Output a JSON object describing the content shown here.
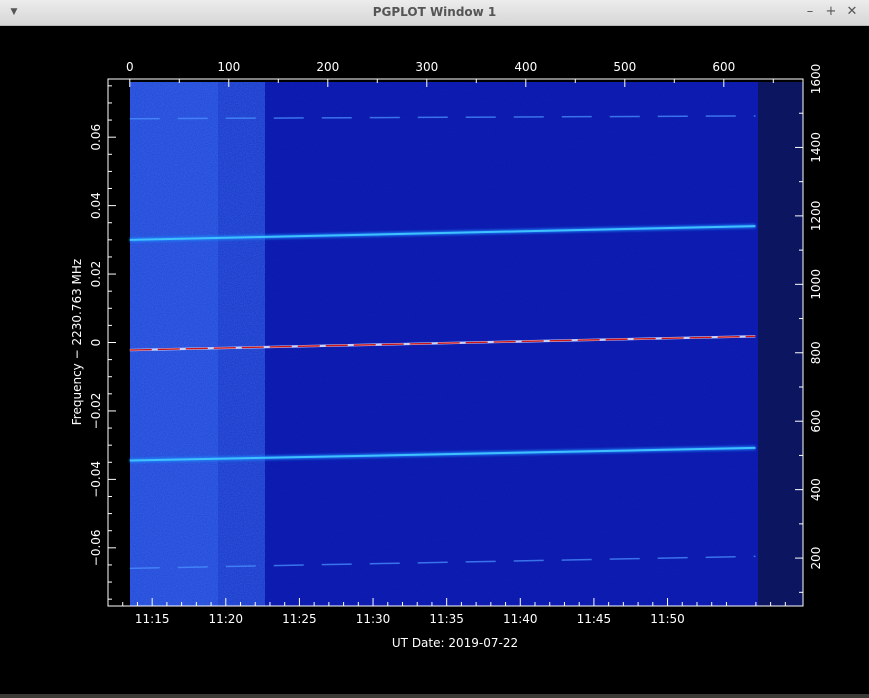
{
  "window": {
    "title": "PGPLOT Window 1",
    "menu_icon": "chevron-down-icon",
    "minimize_icon": "minimize-icon",
    "maximize_icon": "maximize-icon",
    "close_icon": "close-icon"
  },
  "colors": {
    "background": "#000000",
    "axis": "#ffffff",
    "plot_fill": "#0d1ab0",
    "trace": "#2aa8ff",
    "center_trace": "#c01818"
  },
  "chart_data": {
    "type": "heatmap",
    "title": "",
    "xlabel": "UT Date: 2019-07-22",
    "ylabel": "Frequency − 2230.763 MHz",
    "top_axis_ticks": [
      "0",
      "100",
      "200",
      "300",
      "400",
      "500",
      "600"
    ],
    "top_axis_range": [
      -22,
      680
    ],
    "bottom_axis_ticks": [
      "11:15",
      "11:20",
      "11:25",
      "11:30",
      "11:35",
      "11:40",
      "11:45",
      "11:50"
    ],
    "bottom_axis_range_minutes": [
      12,
      59.2
    ],
    "left_axis_ticks": [
      "−0.06",
      "−0.04",
      "−0.02",
      "0",
      "0.02",
      "0.04",
      "0.06"
    ],
    "left_axis_values": [
      -0.06,
      -0.04,
      -0.02,
      0,
      0.02,
      0.04,
      0.06
    ],
    "ylim": [
      -0.077,
      0.077
    ],
    "right_axis_ticks": [
      "200",
      "400",
      "600",
      "800",
      "1000",
      "1200",
      "1400",
      "1600"
    ],
    "right_axis_values": [
      200,
      400,
      600,
      800,
      1000,
      1200,
      1400,
      1600
    ],
    "right_axis_range": [
      60,
      1600
    ],
    "data_extent_top_axis": [
      0,
      632
    ],
    "series": [
      {
        "y_start": 0.0654,
        "y_end": 0.0662,
        "strength": "faint"
      },
      {
        "y_start": 0.03,
        "y_end": 0.034,
        "strength": "strong"
      },
      {
        "y_start": -0.0022,
        "y_end": 0.0018,
        "strength": "center"
      },
      {
        "y_start": -0.0345,
        "y_end": -0.0308,
        "strength": "strong"
      },
      {
        "y_start": -0.066,
        "y_end": -0.0625,
        "strength": "faint"
      }
    ]
  }
}
